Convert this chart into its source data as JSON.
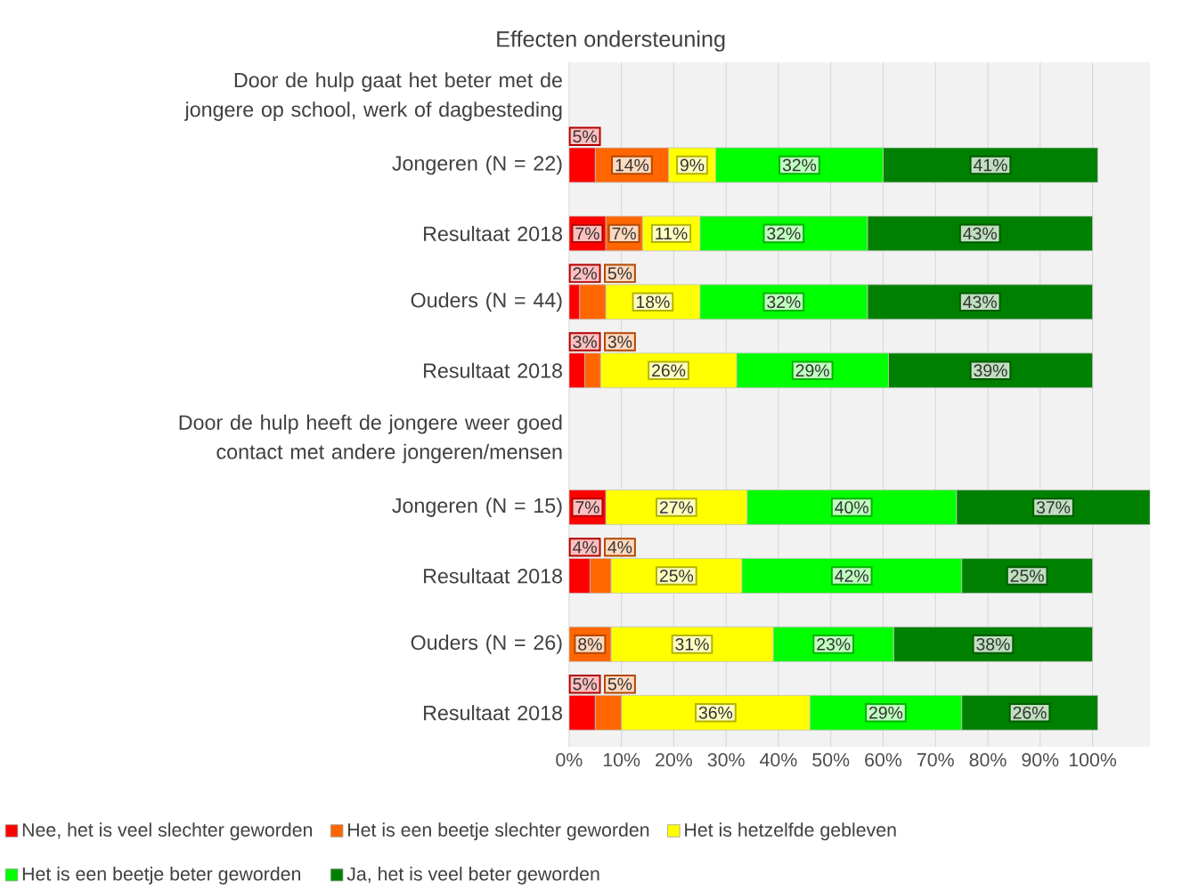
{
  "chart_data": {
    "type": "bar",
    "title": "Effecten ondersteuning",
    "orientation": "horizontal",
    "stacked": true,
    "categories": [
      "Door de hulp gaat het beter met de jongere op school, werk of dagbesteding",
      "Jongeren (N = 22)",
      "Resultaat 2018",
      "Ouders (N = 44)",
      "Resultaat 2018",
      "Door de hulp heeft de jongere weer goed contact met andere jongeren/mensen",
      "Jongeren (N = 15)",
      "Resultaat 2018",
      "Ouders (N = 26)",
      "Resultaat 2018"
    ],
    "series": [
      {
        "name": "Nee, het is veel slechter geworden",
        "color": "#ff0000",
        "values": [
          null,
          5,
          7,
          2,
          3,
          null,
          7,
          4,
          null,
          5
        ],
        "value_labels": [
          null,
          "5%",
          "7%",
          "2%",
          "3%",
          null,
          "7%",
          "4%",
          null,
          "5%"
        ]
      },
      {
        "name": "Het is een beetje slechter geworden",
        "color": "#ff6600",
        "values": [
          null,
          14,
          7,
          5,
          3,
          null,
          null,
          4,
          8,
          5
        ],
        "value_labels": [
          null,
          "14%",
          "7%",
          "5%",
          "3%",
          null,
          null,
          "4%",
          "8%",
          "5%"
        ]
      },
      {
        "name": "Het is hetzelfde gebleven",
        "color": "#ffff00",
        "values": [
          null,
          9,
          11,
          18,
          26,
          null,
          27,
          25,
          31,
          36
        ],
        "value_labels": [
          null,
          "9%",
          "11%",
          "18%",
          "26%",
          null,
          "27%",
          "25%",
          "31%",
          "36%"
        ]
      },
      {
        "name": "Het is een beetje beter geworden",
        "color": "#00ff00",
        "values": [
          null,
          32,
          32,
          32,
          29,
          null,
          40,
          42,
          23,
          29
        ],
        "value_labels": [
          null,
          "32%",
          "32%",
          "32%",
          "29%",
          null,
          "40%",
          "42%",
          "23%",
          "29%"
        ]
      },
      {
        "name": "Ja, het is veel beter geworden",
        "color": "#008000",
        "values": [
          null,
          41,
          43,
          43,
          39,
          null,
          37,
          25,
          38,
          26
        ],
        "value_labels": [
          null,
          "41%",
          "43%",
          "43%",
          "39%",
          null,
          "37%",
          "25%",
          "38%",
          "26%"
        ]
      }
    ],
    "xlim": [
      0,
      111
    ],
    "xticks": [
      {
        "value": 0,
        "label": "0%"
      },
      {
        "value": 10,
        "label": "10%"
      },
      {
        "value": 20,
        "label": "20%"
      },
      {
        "value": 30,
        "label": "30%"
      },
      {
        "value": 40,
        "label": "40%"
      },
      {
        "value": 50,
        "label": "50%"
      },
      {
        "value": 60,
        "label": "60%"
      },
      {
        "value": 70,
        "label": "70%"
      },
      {
        "value": 80,
        "label": "80%"
      },
      {
        "value": 90,
        "label": "90%"
      },
      {
        "value": 100,
        "label": "100%"
      }
    ],
    "grid": "x",
    "legend": "bottom"
  }
}
